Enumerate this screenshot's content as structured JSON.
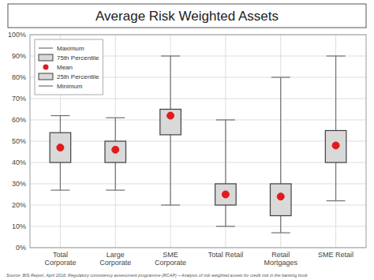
{
  "chart_data": {
    "type": "box",
    "title": "Average Risk Weighted Assets",
    "categories": [
      "Total\nCorporate",
      "Large\nCorporate",
      "SME\nCorporate",
      "Total Retail",
      "Retail\nMortgages",
      "SME Retail"
    ],
    "boxes": [
      {
        "min": 0.27,
        "q1": 0.4,
        "mean": 0.47,
        "q3": 0.54,
        "max": 0.62
      },
      {
        "min": 0.27,
        "q1": 0.4,
        "mean": 0.46,
        "q3": 0.5,
        "max": 0.61
      },
      {
        "min": 0.2,
        "q1": 0.53,
        "mean": 0.62,
        "q3": 0.65,
        "max": 0.9
      },
      {
        "min": 0.1,
        "q1": 0.2,
        "mean": 0.25,
        "q3": 0.3,
        "max": 0.6
      },
      {
        "min": 0.07,
        "q1": 0.15,
        "mean": 0.24,
        "q3": 0.3,
        "max": 0.8
      },
      {
        "min": 0.22,
        "q1": 0.4,
        "mean": 0.48,
        "q3": 0.55,
        "max": 0.9
      }
    ],
    "color": "#d9d9d9",
    "legend_labels": [
      "Maximum",
      "75th Percentile",
      "Mean",
      "25th Percentile",
      "Minimum"
    ],
    "legend": "upper left",
    "grid": true,
    "ylim": [
      0,
      1.0
    ],
    "yticks": [
      {
        "value": 0,
        "label": "0%"
      },
      {
        "value": 0.1,
        "label": "10%"
      },
      {
        "value": 0.2,
        "label": "20%"
      },
      {
        "value": 0.3,
        "label": "30%"
      },
      {
        "value": 0.4,
        "label": "40%"
      },
      {
        "value": 0.5,
        "label": "50%"
      },
      {
        "value": 0.6,
        "label": "60%"
      },
      {
        "value": 0.7,
        "label": "70%"
      },
      {
        "value": 0.8,
        "label": "80%"
      },
      {
        "value": 0.9,
        "label": "90%"
      },
      {
        "value": 1.0,
        "label": "100%"
      }
    ],
    "source": "Source: BIS Report, April 2016: Regulatory consistency assessment programme (RCAP) – Analysis of risk weighted assets for credit risk in the banking book"
  }
}
